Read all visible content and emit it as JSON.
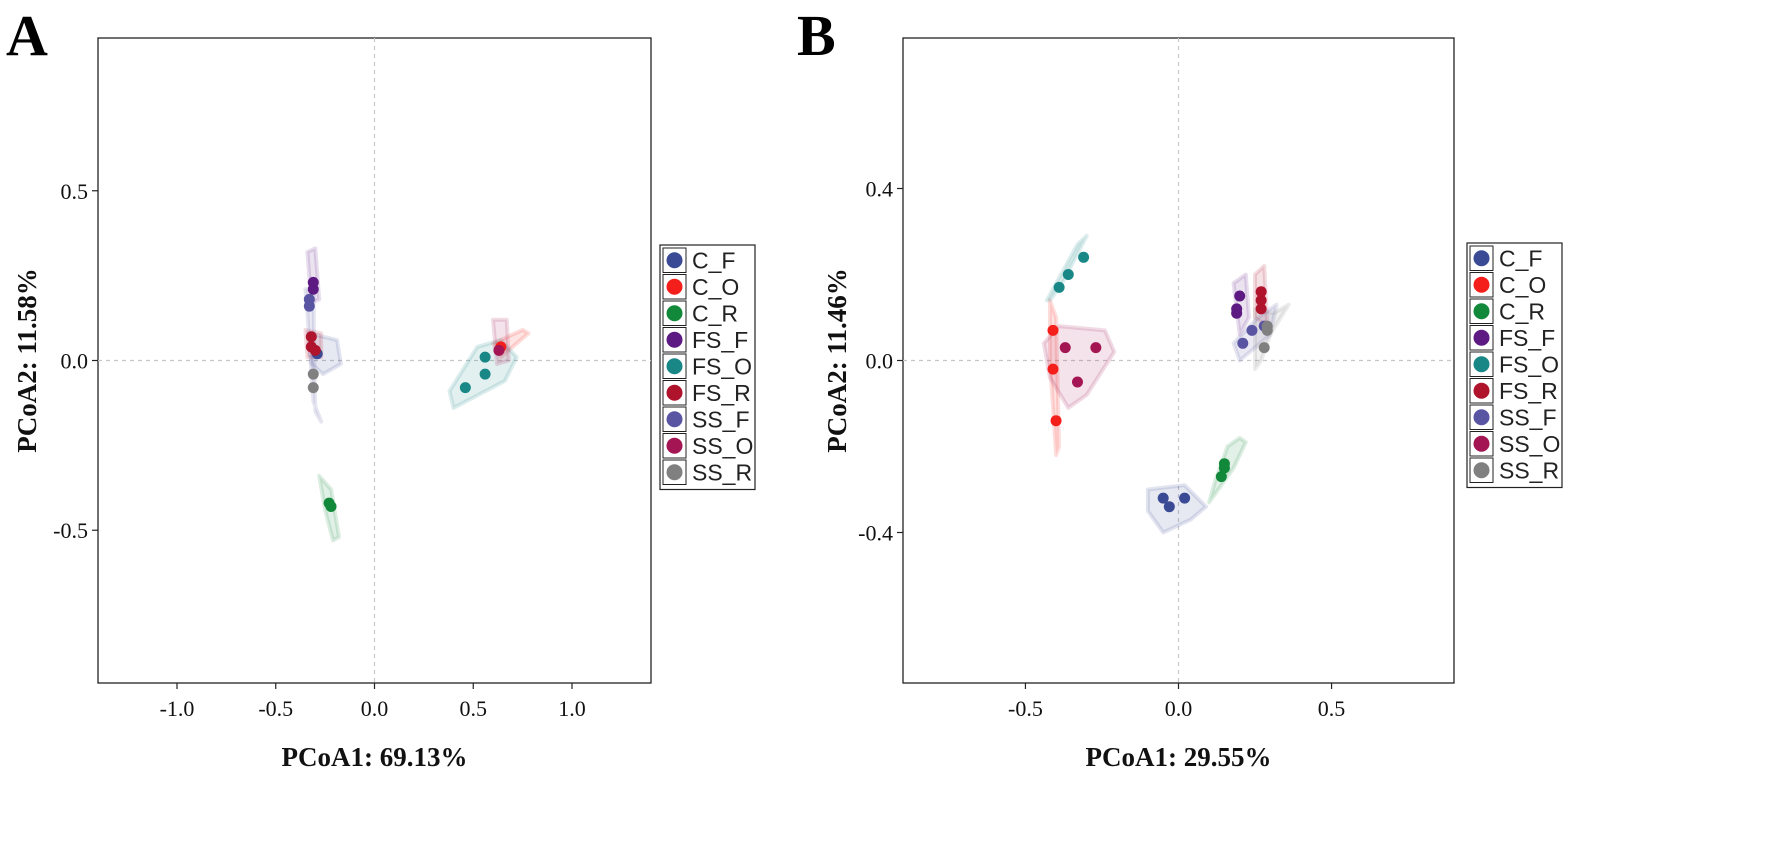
{
  "chart_data": [
    {
      "type": "scatter",
      "panel": "A",
      "title": "",
      "xlabel": "PCoA1: 69.13%",
      "ylabel": "PCoA2: 11.58%",
      "xlim": [
        -1.4,
        1.4
      ],
      "ylim": [
        -0.95,
        0.95
      ],
      "xticks": [
        -1.0,
        -0.5,
        0.0,
        0.5,
        1.0
      ],
      "xtick_labels": [
        "-1.0",
        "-0.5",
        "0.0",
        "0.5",
        "1.0"
      ],
      "yticks": [
        0.5,
        0.0,
        -0.5
      ],
      "ytick_labels": [
        "0.5",
        "0.0",
        "-0.5"
      ],
      "grid": false,
      "zero_lines": true,
      "legend_position": "right",
      "series": [
        {
          "name": "C_F",
          "color": "#3a4a94",
          "points": [
            [
              -0.29,
              0.02
            ]
          ],
          "ellipse": [
            [
              -0.33,
              0.08
            ],
            [
              -0.19,
              0.06
            ],
            [
              -0.17,
              -0.01
            ],
            [
              -0.26,
              -0.04
            ],
            [
              -0.32,
              -0.01
            ]
          ]
        },
        {
          "name": "C_O",
          "color": "#f41f1a",
          "points": [
            [
              0.64,
              0.04
            ]
          ],
          "ellipse": [
            [
              0.6,
              0.05
            ],
            [
              0.75,
              0.09
            ],
            [
              0.78,
              0.08
            ],
            [
              0.64,
              0.01
            ]
          ]
        },
        {
          "name": "C_R",
          "color": "#12893a",
          "points": [
            [
              -0.23,
              -0.42
            ],
            [
              -0.22,
              -0.43
            ]
          ],
          "ellipse": [
            [
              -0.28,
              -0.34
            ],
            [
              -0.22,
              -0.38
            ],
            [
              -0.18,
              -0.52
            ],
            [
              -0.21,
              -0.53
            ],
            [
              -0.25,
              -0.44
            ]
          ]
        },
        {
          "name": "FS_F",
          "color": "#5e1a83",
          "points": [
            [
              -0.31,
              0.23
            ],
            [
              -0.31,
              0.21
            ]
          ],
          "ellipse": [
            [
              -0.34,
              0.32
            ],
            [
              -0.3,
              0.33
            ],
            [
              -0.28,
              0.18
            ],
            [
              -0.32,
              0.17
            ]
          ]
        },
        {
          "name": "FS_O",
          "color": "#1a8787",
          "points": [
            [
              0.56,
              0.01
            ],
            [
              0.56,
              -0.04
            ],
            [
              0.46,
              -0.08
            ]
          ],
          "ellipse": [
            [
              0.38,
              -0.09
            ],
            [
              0.52,
              0.04
            ],
            [
              0.64,
              0.06
            ],
            [
              0.72,
              0.01
            ],
            [
              0.66,
              -0.06
            ],
            [
              0.4,
              -0.14
            ]
          ]
        },
        {
          "name": "FS_R",
          "color": "#b0142d",
          "points": [
            [
              -0.32,
              0.07
            ],
            [
              -0.32,
              0.04
            ],
            [
              -0.3,
              0.03
            ]
          ],
          "ellipse": [
            [
              -0.35,
              0.09
            ],
            [
              -0.27,
              0.08
            ],
            [
              -0.27,
              0.01
            ],
            [
              -0.34,
              0.01
            ]
          ]
        },
        {
          "name": "SS_F",
          "color": "#5a55a3",
          "points": [
            [
              -0.33,
              0.18
            ],
            [
              -0.33,
              0.16
            ]
          ],
          "ellipse": [
            [
              -0.35,
              0.21
            ],
            [
              -0.31,
              0.21
            ],
            [
              -0.3,
              -0.15
            ],
            [
              -0.27,
              -0.18
            ],
            [
              -0.31,
              -0.12
            ],
            [
              -0.34,
              0.14
            ]
          ]
        },
        {
          "name": "SS_O",
          "color": "#a31553",
          "points": [
            [
              0.63,
              0.03
            ]
          ],
          "ellipse": [
            [
              0.6,
              0.12
            ],
            [
              0.67,
              0.12
            ],
            [
              0.68,
              0.0
            ],
            [
              0.62,
              -0.01
            ]
          ]
        },
        {
          "name": "SS_R",
          "color": "#808080",
          "points": [
            [
              -0.31,
              -0.04
            ],
            [
              -0.31,
              -0.08
            ]
          ],
          "ellipse": []
        }
      ]
    },
    {
      "type": "scatter",
      "panel": "B",
      "title": "",
      "xlabel": "PCoA1: 29.55%",
      "ylabel": "PCoA2: 11.46%",
      "xlim": [
        -0.9,
        0.9
      ],
      "ylim": [
        -0.75,
        0.75
      ],
      "xticks": [
        -0.5,
        0.0,
        0.5
      ],
      "xtick_labels": [
        "-0.5",
        "0.0",
        "0.5"
      ],
      "yticks": [
        0.4,
        0.0,
        -0.4
      ],
      "ytick_labels": [
        "0.4",
        "0.0",
        "-0.4"
      ],
      "grid": false,
      "zero_lines": true,
      "legend_position": "right",
      "series": [
        {
          "name": "C_F",
          "color": "#3a4a94",
          "points": [
            [
              -0.05,
              -0.32
            ],
            [
              -0.03,
              -0.34
            ],
            [
              0.02,
              -0.32
            ]
          ],
          "ellipse": [
            [
              -0.1,
              -0.3
            ],
            [
              0.02,
              -0.29
            ],
            [
              0.09,
              -0.34
            ],
            [
              0.04,
              -0.37
            ],
            [
              -0.05,
              -0.4
            ],
            [
              -0.1,
              -0.35
            ]
          ]
        },
        {
          "name": "C_O",
          "color": "#f41f1a",
          "points": [
            [
              -0.41,
              0.07
            ],
            [
              -0.41,
              -0.02
            ],
            [
              -0.4,
              -0.14
            ]
          ],
          "ellipse": [
            [
              -0.42,
              0.14
            ],
            [
              -0.4,
              0.1
            ],
            [
              -0.39,
              -0.2
            ],
            [
              -0.4,
              -0.22
            ],
            [
              -0.42,
              0.0
            ]
          ]
        },
        {
          "name": "C_R",
          "color": "#12893a",
          "points": [
            [
              0.15,
              -0.24
            ],
            [
              0.15,
              -0.25
            ],
            [
              0.14,
              -0.27
            ]
          ],
          "ellipse": [
            [
              0.12,
              -0.28
            ],
            [
              0.16,
              -0.2
            ],
            [
              0.2,
              -0.18
            ],
            [
              0.22,
              -0.19
            ],
            [
              0.18,
              -0.25
            ],
            [
              0.1,
              -0.33
            ]
          ]
        },
        {
          "name": "FS_F",
          "color": "#5e1a83",
          "points": [
            [
              0.2,
              0.15
            ],
            [
              0.19,
              0.12
            ],
            [
              0.19,
              0.11
            ]
          ],
          "ellipse": [
            [
              0.18,
              0.18
            ],
            [
              0.22,
              0.2
            ],
            [
              0.23,
              0.1
            ],
            [
              0.2,
              0.06
            ]
          ]
        },
        {
          "name": "FS_O",
          "color": "#1a8787",
          "points": [
            [
              -0.31,
              0.24
            ],
            [
              -0.36,
              0.2
            ],
            [
              -0.39,
              0.17
            ]
          ],
          "ellipse": [
            [
              -0.43,
              0.14
            ],
            [
              -0.33,
              0.27
            ],
            [
              -0.3,
              0.29
            ],
            [
              -0.38,
              0.18
            ],
            [
              -0.42,
              0.14
            ]
          ]
        },
        {
          "name": "FS_R",
          "color": "#b0142d",
          "points": [
            [
              0.27,
              0.16
            ],
            [
              0.27,
              0.14
            ],
            [
              0.27,
              0.12
            ]
          ],
          "ellipse": [
            [
              0.25,
              0.2
            ],
            [
              0.28,
              0.22
            ],
            [
              0.29,
              0.08
            ],
            [
              0.25,
              0.1
            ]
          ]
        },
        {
          "name": "SS_F",
          "color": "#5a55a3",
          "points": [
            [
              0.24,
              0.07
            ],
            [
              0.21,
              0.04
            ],
            [
              0.28,
              0.08
            ]
          ],
          "ellipse": [
            [
              0.18,
              0.04
            ],
            [
              0.26,
              0.1
            ],
            [
              0.32,
              0.13
            ],
            [
              0.3,
              0.06
            ],
            [
              0.2,
              0.0
            ]
          ]
        },
        {
          "name": "SS_O",
          "color": "#a31553",
          "points": [
            [
              -0.37,
              0.03
            ],
            [
              -0.27,
              0.03
            ],
            [
              -0.33,
              -0.05
            ]
          ],
          "ellipse": [
            [
              -0.44,
              0.04
            ],
            [
              -0.39,
              0.08
            ],
            [
              -0.24,
              0.07
            ],
            [
              -0.21,
              0.02
            ],
            [
              -0.3,
              -0.08
            ],
            [
              -0.36,
              -0.11
            ],
            [
              -0.42,
              -0.04
            ]
          ]
        },
        {
          "name": "SS_R",
          "color": "#808080",
          "points": [
            [
              0.29,
              0.08
            ],
            [
              0.29,
              0.07
            ],
            [
              0.28,
              0.03
            ]
          ],
          "ellipse": [
            [
              0.25,
              0.12
            ],
            [
              0.31,
              0.11
            ],
            [
              0.36,
              0.13
            ],
            [
              0.3,
              0.06
            ],
            [
              0.27,
              0.0
            ],
            [
              0.25,
              -0.02
            ]
          ]
        }
      ]
    }
  ],
  "legend": [
    "C_F",
    "C_O",
    "C_R",
    "FS_F",
    "FS_O",
    "FS_R",
    "SS_F",
    "SS_O",
    "SS_R"
  ]
}
